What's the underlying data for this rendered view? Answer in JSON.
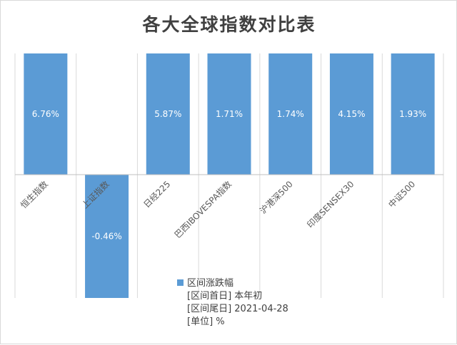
{
  "chart_data": {
    "type": "bar",
    "title": "各大全球指数对比表",
    "categories": [
      "恒生指数",
      "上证指数",
      "日经225",
      "巴西IBOVESPA指数",
      "沪港深500",
      "印度SENSEX30",
      "中证500"
    ],
    "series": [
      {
        "name": "区间涨跌幅",
        "values": [
          6.76,
          -0.46,
          5.87,
          1.71,
          1.74,
          4.15,
          1.93
        ],
        "data_labels": [
          "6.76%",
          "-0.46%",
          "5.87%",
          "1.71%",
          "1.74%",
          "4.15%",
          "1.93%"
        ]
      }
    ],
    "legend": {
      "position": "bottom-center",
      "lines": [
        "区间涨跌幅",
        "[区间首日] 本年初",
        "[区间尾日] 2021-04-28",
        "[单位] %"
      ]
    },
    "axis_display": "broken scale; bars not drawn to value proportion",
    "grid": true,
    "colors": {
      "bar": "#5b9bd5",
      "grid": "#d9d9d9",
      "axis": "#bfbfbf",
      "title": "#404040",
      "text": "#595959"
    }
  }
}
